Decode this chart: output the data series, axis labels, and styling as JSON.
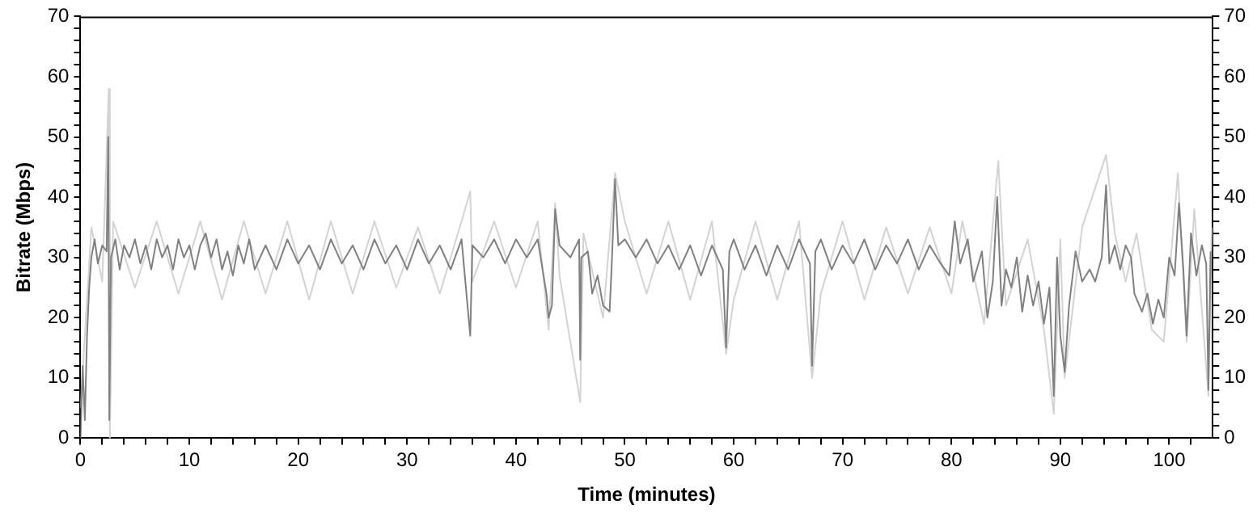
{
  "chart_data": {
    "type": "line",
    "xlabel": "Time (minutes)",
    "ylabel": "Bitrate (Mbps)",
    "xlim": [
      0,
      104
    ],
    "ylim": [
      0,
      70
    ],
    "y2lim": [
      0,
      70
    ],
    "xticks": [
      0,
      {
        "value": 2,
        "label": null
      },
      {
        "value": 4,
        "label": null
      },
      {
        "value": 6,
        "label": null
      },
      {
        "value": 8,
        "label": null
      },
      10,
      {
        "value": 12,
        "label": null
      },
      {
        "value": 14,
        "label": null
      },
      {
        "value": 16,
        "label": null
      },
      {
        "value": 18,
        "label": null
      },
      20,
      {
        "value": 22,
        "label": null
      },
      {
        "value": 24,
        "label": null
      },
      {
        "value": 26,
        "label": null
      },
      {
        "value": 28,
        "label": null
      },
      30,
      {
        "value": 32,
        "label": null
      },
      {
        "value": 34,
        "label": null
      },
      {
        "value": 36,
        "label": null
      },
      {
        "value": 38,
        "label": null
      },
      40,
      {
        "value": 42,
        "label": null
      },
      {
        "value": 44,
        "label": null
      },
      {
        "value": 46,
        "label": null
      },
      {
        "value": 48,
        "label": null
      },
      50,
      {
        "value": 52,
        "label": null
      },
      {
        "value": 54,
        "label": null
      },
      {
        "value": 56,
        "label": null
      },
      {
        "value": 58,
        "label": null
      },
      60,
      {
        "value": 62,
        "label": null
      },
      {
        "value": 64,
        "label": null
      },
      {
        "value": 66,
        "label": null
      },
      {
        "value": 68,
        "label": null
      },
      70,
      {
        "value": 72,
        "label": null
      },
      {
        "value": 74,
        "label": null
      },
      {
        "value": 76,
        "label": null
      },
      {
        "value": 78,
        "label": null
      },
      80,
      {
        "value": 82,
        "label": null
      },
      {
        "value": 84,
        "label": null
      },
      {
        "value": 86,
        "label": null
      },
      {
        "value": 88,
        "label": null
      },
      90,
      {
        "value": 92,
        "label": null
      },
      {
        "value": 94,
        "label": null
      },
      {
        "value": 96,
        "label": null
      },
      {
        "value": 98,
        "label": null
      },
      100,
      {
        "value": 102,
        "label": null
      }
    ],
    "yticks": [
      0,
      {
        "value": 2,
        "label": null
      },
      {
        "value": 4,
        "label": null
      },
      {
        "value": 6,
        "label": null
      },
      {
        "value": 8,
        "label": null
      },
      10,
      {
        "value": 12,
        "label": null
      },
      {
        "value": 14,
        "label": null
      },
      {
        "value": 16,
        "label": null
      },
      {
        "value": 18,
        "label": null
      },
      20,
      {
        "value": 22,
        "label": null
      },
      {
        "value": 24,
        "label": null
      },
      {
        "value": 26,
        "label": null
      },
      {
        "value": 28,
        "label": null
      },
      30,
      {
        "value": 32,
        "label": null
      },
      {
        "value": 34,
        "label": null
      },
      {
        "value": 36,
        "label": null
      },
      {
        "value": 38,
        "label": null
      },
      40,
      {
        "value": 42,
        "label": null
      },
      {
        "value": 44,
        "label": null
      },
      {
        "value": 46,
        "label": null
      },
      {
        "value": 48,
        "label": null
      },
      50,
      {
        "value": 52,
        "label": null
      },
      {
        "value": 54,
        "label": null
      },
      {
        "value": 56,
        "label": null
      },
      {
        "value": 58,
        "label": null
      },
      60,
      {
        "value": 62,
        "label": null
      },
      {
        "value": 64,
        "label": null
      },
      {
        "value": 66,
        "label": null
      },
      {
        "value": 68,
        "label": null
      },
      70
    ],
    "y2ticks": [
      0,
      {
        "value": 2,
        "label": null
      },
      {
        "value": 4,
        "label": null
      },
      {
        "value": 6,
        "label": null
      },
      {
        "value": 8,
        "label": null
      },
      10,
      {
        "value": 12,
        "label": null
      },
      {
        "value": 14,
        "label": null
      },
      {
        "value": 16,
        "label": null
      },
      {
        "value": 18,
        "label": null
      },
      20,
      {
        "value": 22,
        "label": null
      },
      {
        "value": 24,
        "label": null
      },
      {
        "value": 26,
        "label": null
      },
      {
        "value": 28,
        "label": null
      },
      30,
      {
        "value": 32,
        "label": null
      },
      {
        "value": 34,
        "label": null
      },
      {
        "value": 36,
        "label": null
      },
      {
        "value": 38,
        "label": null
      },
      40,
      {
        "value": 42,
        "label": null
      },
      {
        "value": 44,
        "label": null
      },
      {
        "value": 46,
        "label": null
      },
      {
        "value": 48,
        "label": null
      },
      50,
      {
        "value": 52,
        "label": null
      },
      {
        "value": 54,
        "label": null
      },
      {
        "value": 56,
        "label": null
      },
      {
        "value": 58,
        "label": null
      },
      60,
      {
        "value": 62,
        "label": null
      },
      {
        "value": 64,
        "label": null
      },
      {
        "value": 66,
        "label": null
      },
      {
        "value": 68,
        "label": null
      },
      70
    ],
    "grid": false,
    "legend": false,
    "marker": "none",
    "line_style": "solid",
    "series": [
      {
        "color": "#808080",
        "x": [
          0,
          0.2,
          0.4,
          0.6,
          0.8,
          1,
          1.3,
          1.6,
          2,
          2.4,
          2.55,
          2.65,
          2.8,
          3.2,
          3.6,
          4,
          4.5,
          5,
          5.5,
          6,
          6.5,
          7,
          7.5,
          8,
          8.5,
          9,
          9.5,
          10,
          10.5,
          11,
          11.5,
          12,
          12.5,
          13,
          13.5,
          14,
          14.5,
          15,
          15.5,
          16,
          17,
          18,
          19,
          20,
          21,
          22,
          23,
          24,
          25,
          26,
          27,
          28,
          29,
          30,
          31,
          32,
          33,
          34,
          35,
          35.8,
          36,
          37,
          38,
          39,
          40,
          41,
          42,
          42.8,
          43,
          43.3,
          43.6,
          44,
          45,
          45.8,
          45.9,
          46,
          46.6,
          47,
          47.5,
          48,
          48.6,
          48.8,
          49.1,
          49.4,
          50,
          51,
          52,
          53,
          54,
          55,
          56,
          57,
          58,
          59,
          59.3,
          59.6,
          60,
          61,
          62,
          63,
          64,
          65,
          66,
          67,
          67.2,
          67.5,
          68,
          69,
          70,
          71,
          72,
          73,
          74,
          75,
          76,
          77,
          78,
          79,
          79.8,
          80.3,
          80.8,
          81.5,
          82,
          82.8,
          83.3,
          83.8,
          84.2,
          84.6,
          85,
          85.5,
          86,
          86.5,
          87,
          87.5,
          88,
          88.5,
          89,
          89.4,
          89.7,
          90,
          90.4,
          90.8,
          91.4,
          92,
          92.7,
          93.2,
          93.8,
          94.2,
          94.5,
          95,
          95.5,
          96,
          96.5,
          96.8,
          97.5,
          98,
          98.5,
          99,
          99.5,
          100,
          100.5,
          100.9,
          101.3,
          101.6,
          102,
          102.5,
          103,
          103.4,
          103.6,
          103.8
        ],
        "values": [
          0,
          12,
          3,
          17,
          25,
          30,
          33,
          29,
          32,
          31,
          50,
          3,
          30,
          33,
          28,
          32,
          30,
          33,
          29,
          32,
          28,
          33,
          30,
          32,
          28,
          33,
          30,
          32,
          28,
          32,
          34,
          30,
          33,
          28,
          31,
          27,
          32,
          29,
          33,
          28,
          32,
          28,
          33,
          29,
          32,
          28,
          33,
          29,
          32,
          28,
          33,
          29,
          32,
          28,
          33,
          29,
          32,
          28,
          33,
          17,
          32,
          30,
          33,
          29,
          33,
          30,
          33,
          24,
          20,
          22,
          38,
          32,
          30,
          33,
          13,
          30,
          31,
          24,
          27,
          22,
          21,
          29,
          43,
          32,
          33,
          30,
          33,
          29,
          32,
          28,
          32,
          27,
          32,
          28,
          15,
          31,
          33,
          28,
          32,
          27,
          32,
          28,
          33,
          29,
          12,
          31,
          33,
          28,
          32,
          29,
          33,
          28,
          32,
          29,
          33,
          28,
          32,
          29,
          27,
          36,
          29,
          33,
          26,
          31,
          20,
          26,
          40,
          22,
          28,
          25,
          30,
          21,
          27,
          22,
          26,
          19,
          25,
          7,
          30,
          17,
          11,
          22,
          31,
          26,
          28,
          26,
          30,
          42,
          29,
          32,
          28,
          32,
          30,
          24,
          21,
          24,
          19,
          23,
          20,
          30,
          27,
          39,
          28,
          17,
          34,
          27,
          32,
          29,
          8,
          31
        ]
      },
      {
        "color": "#d3d3d3",
        "x": [
          0,
          0.5,
          1,
          2,
          2.6,
          2.7,
          3,
          5,
          7,
          9,
          11,
          13,
          15,
          17,
          19,
          21,
          23,
          25,
          27,
          29,
          31,
          33,
          35,
          35.8,
          36,
          38,
          40,
          42,
          43,
          43.6,
          44,
          45.9,
          46.2,
          48,
          49.1,
          50,
          52,
          54,
          56,
          58,
          59.3,
          60,
          62,
          64,
          66,
          67.2,
          68,
          70,
          72,
          74,
          76,
          78,
          80,
          81,
          83,
          84.3,
          85,
          87,
          88.5,
          89.4,
          90,
          90.4,
          92,
          94.2,
          95,
          96,
          97,
          98.4,
          99.5,
          100.8,
          101.6,
          102.3,
          103.6,
          103.9
        ],
        "values": [
          5,
          20,
          35,
          26,
          58,
          0,
          36,
          25,
          36,
          24,
          36,
          23,
          36,
          24,
          36,
          23,
          36,
          24,
          36,
          25,
          35,
          24,
          36,
          41,
          26,
          36,
          25,
          36,
          18,
          39,
          27,
          6,
          34,
          20,
          44,
          36,
          24,
          36,
          23,
          36,
          14,
          23,
          36,
          23,
          36,
          10,
          24,
          36,
          23,
          35,
          24,
          35,
          24,
          36,
          19,
          46,
          22,
          33,
          18,
          4,
          33,
          10,
          35,
          47,
          34,
          26,
          34,
          18,
          16,
          44,
          16,
          38,
          7,
          35
        ]
      }
    ]
  }
}
